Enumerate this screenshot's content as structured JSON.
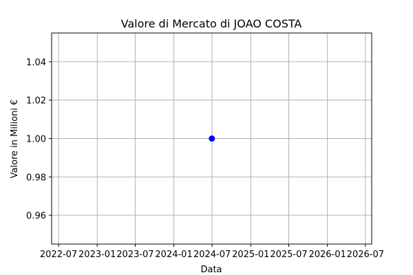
{
  "chart_data": {
    "type": "scatter",
    "title": "Valore di Mercato di JOAO COSTA",
    "xlabel": "Data",
    "ylabel": "Valore in Milioni €",
    "x_ticks": [
      "2022-07",
      "2023-01",
      "2023-07",
      "2024-01",
      "2024-07",
      "2025-01",
      "2025-07",
      "2026-01",
      "2026-07"
    ],
    "y_ticks": [
      "0.96",
      "0.98",
      "1.00",
      "1.02",
      "1.04"
    ],
    "xlim": [
      "2022-05-29",
      "2026-07-31"
    ],
    "ylim": [
      0.945,
      1.055
    ],
    "grid": true,
    "series": [
      {
        "marker_color": "#0000ff",
        "points": [
          {
            "x": "2024-06-30",
            "y": 1.0
          }
        ]
      }
    ]
  }
}
